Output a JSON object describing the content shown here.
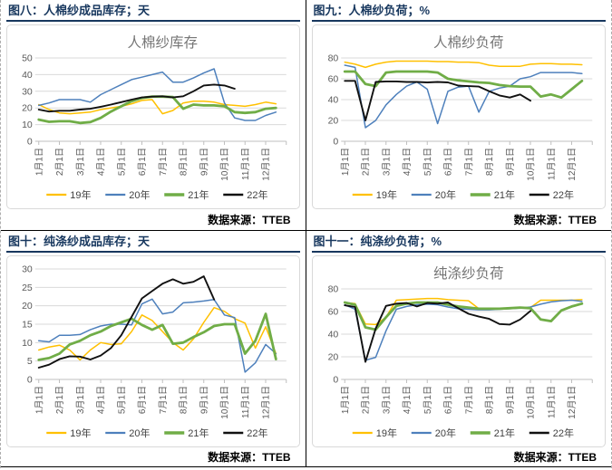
{
  "page": {
    "source_label": "数据来源：TTEB"
  },
  "chart_data": [
    {
      "id": "fig8",
      "header": "图八：人棉纱成品库存；天",
      "title": "人棉纱库存",
      "type": "line",
      "ylim": [
        0,
        50
      ],
      "yticks": [
        0,
        10,
        20,
        30,
        40,
        50
      ],
      "slots": 24,
      "x_labels": [
        "1月1日",
        "2月1日",
        "3月1日",
        "4月1日",
        "5月1日",
        "6月1日",
        "7月1日",
        "8月1日",
        "9月1日",
        "10月1日",
        "11月1日",
        "12月1日"
      ],
      "source": "数据来源：TTEB",
      "legend_position": "bottom",
      "grid": true,
      "series": [
        {
          "name": "19年",
          "color": "#FFC000",
          "width": 1.5,
          "values": [
            22,
            19,
            17,
            16.5,
            17,
            17.5,
            19,
            20,
            21,
            22.5,
            24.5,
            25,
            16.5,
            18.5,
            23,
            24,
            24,
            23.5,
            22,
            21.5,
            21,
            22,
            23.5,
            22.5
          ]
        },
        {
          "name": "20年",
          "color": "#4E80BC",
          "width": 1.5,
          "values": [
            21.5,
            23,
            25,
            25,
            25,
            23.5,
            28,
            31,
            34,
            37,
            38.5,
            40,
            41.5,
            35.5,
            35.5,
            38,
            41,
            43.5,
            23,
            14,
            12.5,
            12.5,
            15.5,
            17.5
          ]
        },
        {
          "name": "21年",
          "color": "#70AD47",
          "width": 2.8,
          "values": [
            13,
            11.7,
            12,
            12,
            11,
            11.5,
            14,
            17.8,
            21,
            24,
            26,
            26.8,
            26.8,
            26.5,
            19.5,
            22,
            21.5,
            21.5,
            21,
            17.5,
            17,
            17.5,
            19.5,
            20
          ]
        },
        {
          "name": "22年",
          "color": "#111111",
          "width": 1.9,
          "values": [
            19,
            17.8,
            18.3,
            18.3,
            19,
            19.5,
            20.7,
            22,
            23.5,
            25,
            26.3,
            26.8,
            27,
            26.3,
            27,
            30,
            33.5,
            34,
            33.5,
            31.5
          ]
        }
      ]
    },
    {
      "id": "fig9",
      "header": "图九：人棉纱负荷；%",
      "title": "人棉纱负荷",
      "type": "line",
      "ylim": [
        0,
        80
      ],
      "yticks": [
        0,
        20,
        40,
        60,
        80
      ],
      "slots": 24,
      "x_labels": [
        "1月1日",
        "2月1日",
        "3月1日",
        "4月1日",
        "5月1日",
        "6月1日",
        "7月1日",
        "8月1日",
        "9月1日",
        "10月1日",
        "11月1日",
        "12月1日"
      ],
      "source": "数据来源：TTEB",
      "legend_position": "bottom",
      "grid": true,
      "series": [
        {
          "name": "19年",
          "color": "#FFC000",
          "width": 1.5,
          "values": [
            76,
            74,
            71,
            74,
            76,
            77,
            77,
            77,
            77,
            76.5,
            76.5,
            76,
            76,
            75.5,
            73,
            72,
            72,
            72,
            74,
            74.5,
            74.5,
            74,
            74,
            73.5
          ]
        },
        {
          "name": "20年",
          "color": "#4E80BC",
          "width": 1.5,
          "values": [
            73,
            71,
            13,
            20,
            35,
            45,
            53,
            57,
            50,
            17,
            48,
            52,
            53,
            28,
            48,
            51,
            53,
            60,
            62,
            66,
            66,
            66,
            66,
            65
          ]
        },
        {
          "name": "21年",
          "color": "#70AD47",
          "width": 2.8,
          "values": [
            67,
            67,
            55,
            53,
            66,
            67,
            67,
            67,
            67,
            66,
            60,
            58.5,
            57.5,
            56.5,
            56,
            54,
            53,
            52.5,
            52.5,
            43,
            45,
            42,
            50,
            58
          ]
        },
        {
          "name": "22年",
          "color": "#111111",
          "width": 1.9,
          "values": [
            58,
            58,
            20,
            57,
            57.5,
            57.5,
            57,
            57,
            56.5,
            57,
            56.5,
            53.5,
            53,
            52.5,
            48,
            44,
            42,
            45,
            39
          ]
        }
      ]
    },
    {
      "id": "fig10",
      "header": "图十：纯涤纱成品库存；天",
      "title": "",
      "type": "line",
      "ylim": [
        0,
        30
      ],
      "yticks": [
        0,
        5,
        10,
        15,
        20,
        25,
        30
      ],
      "slots": 24,
      "x_labels": [
        "1月1日",
        "2月1日",
        "3月1日",
        "4月1日",
        "5月1日",
        "6月1日",
        "7月1日",
        "8月1日",
        "9月1日",
        "10月1日",
        "11月1日",
        "12月1日"
      ],
      "source": "数据来源：TTEB",
      "legend_position": "bottom",
      "grid": true,
      "series": [
        {
          "name": "19年",
          "color": "#FFC000",
          "width": 1.5,
          "values": [
            8,
            8.8,
            9.3,
            8,
            5.3,
            8,
            10,
            9.5,
            9.7,
            13,
            17.5,
            16,
            13,
            10,
            8,
            11,
            15.5,
            19.5,
            18.5,
            16.5,
            15.3,
            8.5,
            14.3,
            7
          ]
        },
        {
          "name": "20年",
          "color": "#4E80BC",
          "width": 1.5,
          "values": [
            10.5,
            10.2,
            12,
            12,
            12.2,
            13.5,
            14.5,
            15,
            15,
            14.8,
            20.5,
            21.8,
            17.8,
            18.3,
            20.8,
            21,
            21.3,
            21.7,
            17.5,
            16.8,
            2,
            4.5,
            9.5,
            7
          ]
        },
        {
          "name": "21年",
          "color": "#70AD47",
          "width": 2.8,
          "values": [
            5.3,
            5.8,
            7,
            9.5,
            10.5,
            12,
            13,
            14.5,
            15.5,
            16.5,
            14.8,
            13.5,
            14.8,
            9.7,
            10,
            11.5,
            12.8,
            14.5,
            15,
            15,
            7,
            10.5,
            17.8,
            5.5
          ]
        },
        {
          "name": "22年",
          "color": "#111111",
          "width": 1.9,
          "values": [
            3.2,
            4,
            5.5,
            6.3,
            6.2,
            5.4,
            6.5,
            8.5,
            12,
            17,
            22,
            24,
            26,
            27.2,
            26,
            26.5,
            28,
            21.7
          ]
        }
      ]
    },
    {
      "id": "fig11",
      "header": "图十一：纯涤纱负荷；%",
      "title": "纯涤纱负荷",
      "type": "line",
      "ylim": [
        0,
        80
      ],
      "yticks": [
        0,
        20,
        40,
        60,
        80
      ],
      "slots": 24,
      "x_labels": [
        "1月1日",
        "2月1日",
        "3月1日",
        "4月1日",
        "5月1日",
        "6月1日",
        "7月1日",
        "8月1日",
        "9月1日",
        "10月1日",
        "11月1日",
        "12月1日"
      ],
      "source": "数据来源：TTEB",
      "legend_position": "bottom",
      "grid": true,
      "series": [
        {
          "name": "19年",
          "color": "#FFC000",
          "width": 1.5,
          "values": [
            68,
            67,
            49,
            48.5,
            55,
            70,
            70.5,
            71,
            71.5,
            71.5,
            70.5,
            70,
            69.5,
            62.5,
            62.5,
            63,
            63,
            63,
            63.5,
            70,
            70,
            70,
            70,
            70.5
          ]
        },
        {
          "name": "20年",
          "color": "#4E80BC",
          "width": 1.5,
          "values": [
            66,
            62,
            17,
            19.5,
            43,
            62,
            64.5,
            66,
            66.5,
            66,
            64,
            62.5,
            62,
            61.5,
            61.5,
            62,
            62.5,
            63,
            64,
            66.5,
            68.5,
            69.5,
            70,
            69
          ]
        },
        {
          "name": "21年",
          "color": "#70AD47",
          "width": 2.8,
          "values": [
            68,
            66,
            46,
            44,
            55,
            65,
            67,
            68,
            68,
            68,
            66,
            64.5,
            63.5,
            62.5,
            62.5,
            62.5,
            63,
            63.5,
            63,
            53,
            51.5,
            61,
            64.5,
            67
          ]
        },
        {
          "name": "22年",
          "color": "#111111",
          "width": 1.9,
          "values": [
            65.5,
            64,
            15.5,
            45,
            65,
            67,
            67.5,
            64.5,
            67.5,
            67,
            68,
            63,
            58,
            55.5,
            53.5,
            49,
            48.5,
            53,
            60.5
          ]
        }
      ]
    }
  ]
}
